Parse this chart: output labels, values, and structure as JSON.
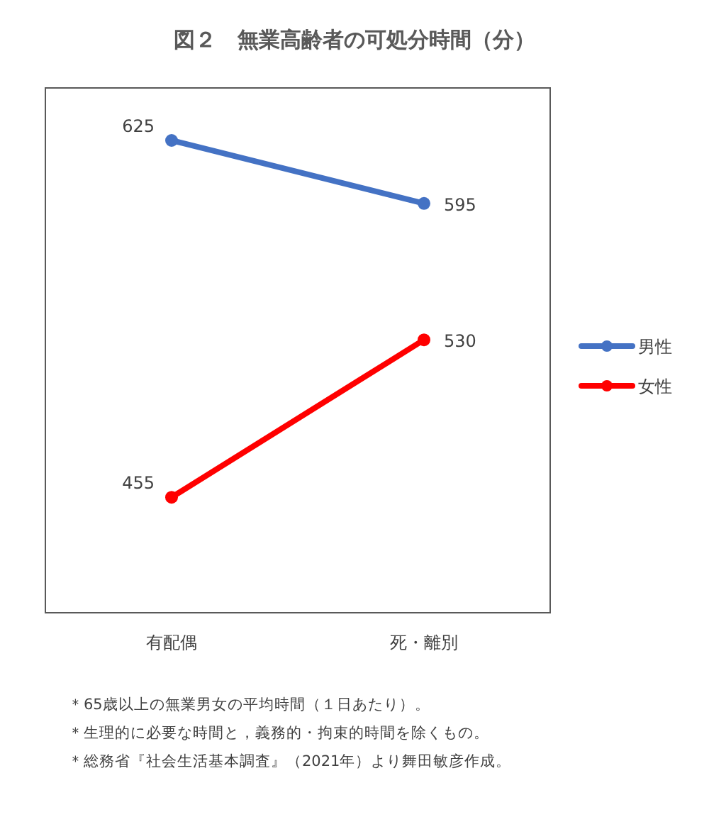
{
  "chart_data": {
    "type": "line",
    "title": "図２　無業高齢者の可処分時間（分）",
    "categories": [
      "有配偶",
      "死・離別"
    ],
    "series": [
      {
        "name": "男性",
        "color": "#4472c4",
        "values": [
          625,
          595
        ]
      },
      {
        "name": "女性",
        "color": "#ff0000",
        "values": [
          455,
          530
        ]
      }
    ],
    "ylim": [
      400,
      650
    ],
    "tick_labels": "x",
    "data_labels": true,
    "marker": "circle",
    "line_style": "solid",
    "legend": "right",
    "annotations": [
      "＊65歳以上の無業男女の平均時間（１日あたり）。",
      "＊生理的に必要な時間と，義務的・拘束的時間を除くもの。",
      "＊総務省『社会生活基本調査』（2021年）より舞田敏彦作成。"
    ]
  }
}
